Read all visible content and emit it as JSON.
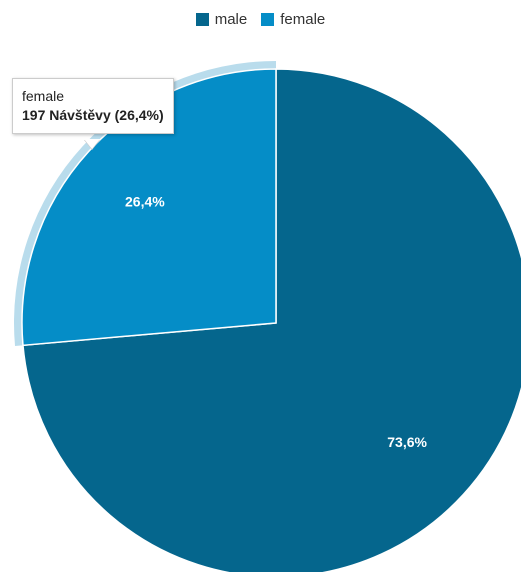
{
  "chart_data": {
    "type": "pie",
    "legend_position": "top",
    "series": [
      {
        "name": "male",
        "percent": 73.6,
        "label": "73,6%",
        "color": "#05668d"
      },
      {
        "name": "female",
        "percent": 26.4,
        "label": "26,4%",
        "color": "#058dc7"
      }
    ],
    "highlighted": "female",
    "highlight_color": "#b9dcec",
    "tooltip": {
      "series_name": "female",
      "value_text": "197 Návštěvy (26,4%)"
    }
  }
}
